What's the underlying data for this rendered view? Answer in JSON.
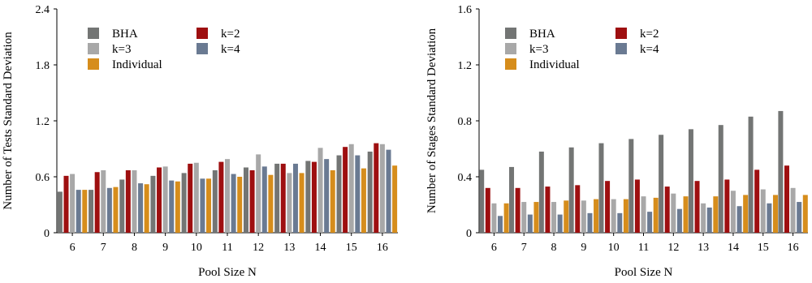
{
  "colors": {
    "BHA": "#737574",
    "k=2": "#9e0f10",
    "k=3": "#a8a8a8",
    "k=4": "#6a7a92",
    "Individual": "#d68d1c"
  },
  "chart_data": [
    {
      "type": "bar",
      "title": "",
      "xlabel": "Pool Size N",
      "ylabel": "Number of Tests Standard Deviation",
      "ylim": [
        0,
        2.4
      ],
      "yticks": [
        "0",
        "0.6",
        "1.2",
        "1.8",
        "2.4"
      ],
      "categories": [
        "6",
        "7",
        "8",
        "9",
        "10",
        "11",
        "12",
        "13",
        "14",
        "15",
        "16"
      ],
      "legend_position": "top-left",
      "grid": false,
      "series": [
        {
          "name": "BHA",
          "values": [
            0.44,
            0.46,
            0.57,
            0.61,
            0.64,
            0.67,
            0.7,
            0.74,
            0.77,
            0.83,
            0.87
          ]
        },
        {
          "name": "k=2",
          "values": [
            0.61,
            0.65,
            0.67,
            0.7,
            0.74,
            0.76,
            0.67,
            0.74,
            0.76,
            0.92,
            0.96
          ]
        },
        {
          "name": "k=3",
          "values": [
            0.63,
            0.67,
            0.67,
            0.71,
            0.75,
            0.79,
            0.84,
            0.64,
            0.91,
            0.95,
            0.95
          ]
        },
        {
          "name": "k=4",
          "values": [
            0.46,
            0.48,
            0.53,
            0.56,
            0.58,
            0.63,
            0.71,
            0.74,
            0.79,
            0.83,
            0.89
          ]
        },
        {
          "name": "Individual",
          "values": [
            0.46,
            0.49,
            0.52,
            0.55,
            0.58,
            0.6,
            0.62,
            0.64,
            0.67,
            0.69,
            0.72
          ]
        }
      ]
    },
    {
      "type": "bar",
      "title": "",
      "xlabel": "Pool Size N",
      "ylabel": "Number of Stages Standard Deviation",
      "ylim": [
        0,
        1.6
      ],
      "yticks": [
        "0",
        "0.4",
        "0.8",
        "1.2",
        "1.6"
      ],
      "categories": [
        "6",
        "7",
        "8",
        "9",
        "10",
        "11",
        "12",
        "13",
        "14",
        "15",
        "16"
      ],
      "legend_position": "top-left",
      "grid": false,
      "series": [
        {
          "name": "BHA",
          "values": [
            0.45,
            0.47,
            0.58,
            0.61,
            0.64,
            0.67,
            0.7,
            0.74,
            0.77,
            0.83,
            0.87
          ]
        },
        {
          "name": "k=2",
          "values": [
            0.32,
            0.32,
            0.33,
            0.34,
            0.37,
            0.38,
            0.33,
            0.37,
            0.38,
            0.45,
            0.48
          ]
        },
        {
          "name": "k=3",
          "values": [
            0.21,
            0.22,
            0.22,
            0.23,
            0.24,
            0.26,
            0.28,
            0.21,
            0.3,
            0.31,
            0.32
          ]
        },
        {
          "name": "k=4",
          "values": [
            0.12,
            0.13,
            0.13,
            0.14,
            0.14,
            0.15,
            0.17,
            0.18,
            0.19,
            0.21,
            0.22
          ]
        },
        {
          "name": "Individual",
          "values": [
            0.21,
            0.22,
            0.23,
            0.24,
            0.24,
            0.25,
            0.26,
            0.26,
            0.27,
            0.27,
            0.27
          ]
        }
      ]
    }
  ]
}
